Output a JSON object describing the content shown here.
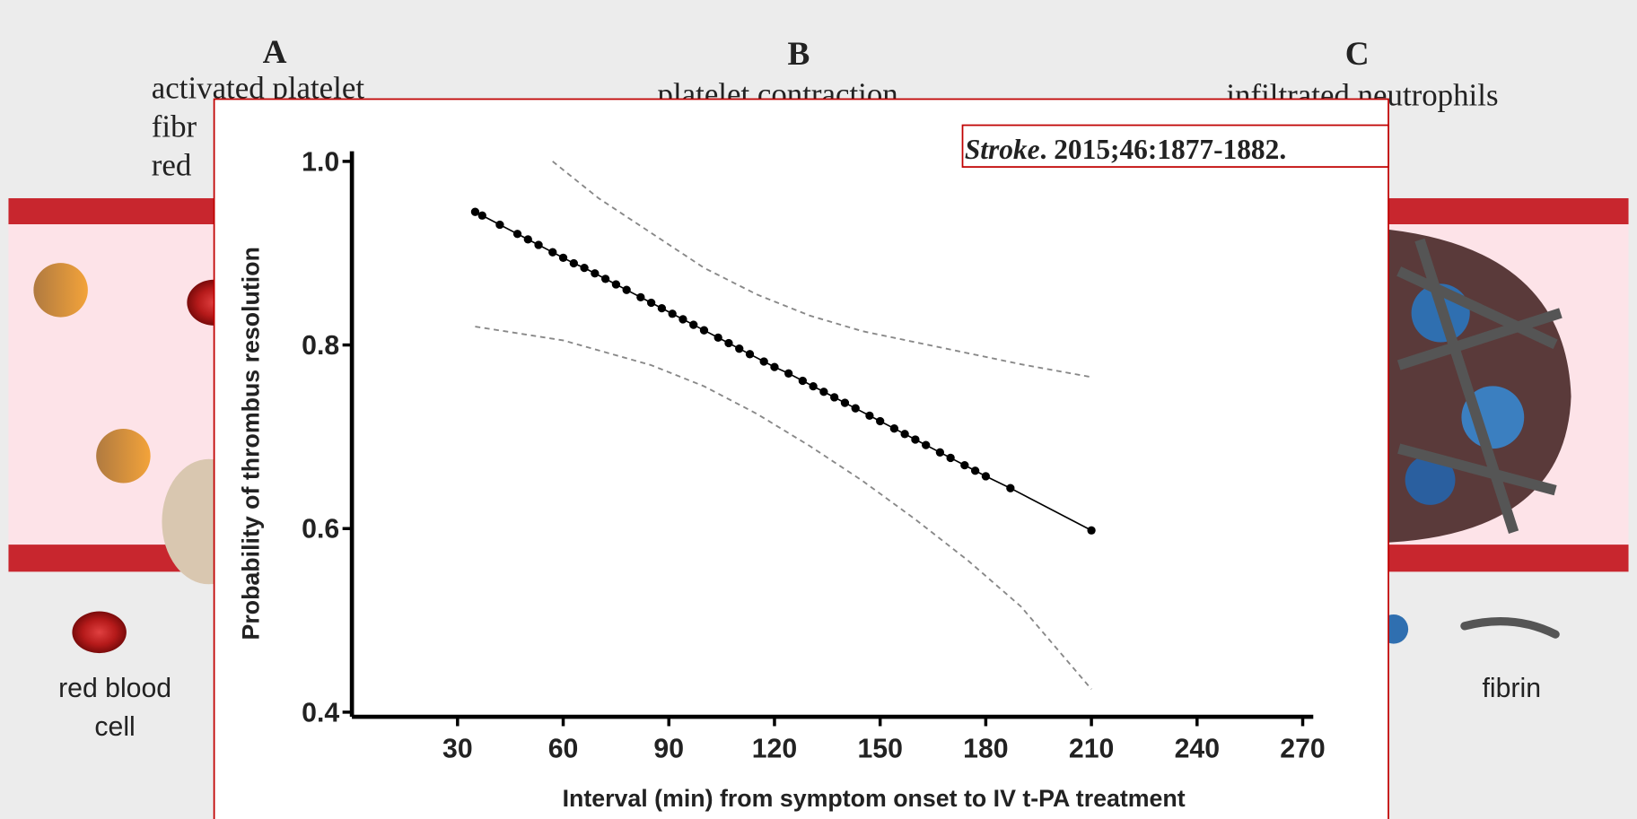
{
  "background": {
    "panels": [
      {
        "letter": "A",
        "lines": [
          "activated platelet",
          "fibr",
          "red"
        ]
      },
      {
        "letter": "B",
        "lines": [
          "platelet contraction"
        ]
      },
      {
        "letter": "C",
        "lines": [
          "infiltrated neutrophils"
        ]
      }
    ],
    "legend": {
      "red_blood_cell": [
        "red blood",
        "cell"
      ],
      "fibrin": "fibrin"
    }
  },
  "citation": {
    "journal": "Stroke",
    "reference": ". 2015;46:1877-1882."
  },
  "chart_data": {
    "type": "line",
    "x_label": "Interval (min) from symptom onset to IV t-PA treatment",
    "y_label": "Probability of thrombus resolution",
    "xlim": [
      0,
      273
    ],
    "xticks": [
      30,
      60,
      90,
      120,
      150,
      180,
      210,
      240,
      270
    ],
    "ylim": [
      0.395,
      1.011
    ],
    "yticks": [
      0.4,
      0.6,
      0.8,
      {
        "value": 1,
        "label": "1.0"
      }
    ],
    "series": [
      {
        "color": "#000000",
        "dashed": false,
        "markers": true,
        "x": [
          35,
          37,
          42,
          47,
          50,
          53,
          57,
          60,
          63,
          66,
          69,
          72,
          75,
          78,
          82,
          85,
          88,
          91,
          94,
          97,
          100,
          104,
          107,
          110,
          113,
          117,
          120,
          124,
          128,
          131,
          134,
          137,
          140,
          143,
          147,
          150,
          154,
          157,
          160,
          163,
          167,
          170,
          174,
          177,
          180,
          187,
          210
        ],
        "values": [
          0.945,
          0.941,
          0.931,
          0.921,
          0.915,
          0.909,
          0.901,
          0.895,
          0.889,
          0.884,
          0.878,
          0.872,
          0.866,
          0.86,
          0.852,
          0.846,
          0.84,
          0.834,
          0.828,
          0.822,
          0.816,
          0.808,
          0.802,
          0.796,
          0.79,
          0.782,
          0.776,
          0.769,
          0.761,
          0.755,
          0.749,
          0.743,
          0.737,
          0.731,
          0.723,
          0.717,
          0.709,
          0.703,
          0.697,
          0.691,
          0.683,
          0.677,
          0.669,
          0.663,
          0.657,
          0.644,
          0.598
        ]
      },
      {
        "color": "#888888",
        "dashed": true,
        "markers": false,
        "x": [
          57,
          70,
          85,
          100,
          115,
          130,
          145,
          160,
          175,
          190,
          210
        ],
        "values": [
          1.0,
          0.96,
          0.922,
          0.884,
          0.855,
          0.832,
          0.815,
          0.803,
          0.791,
          0.779,
          0.765
        ]
      },
      {
        "color": "#888888",
        "dashed": true,
        "markers": false,
        "x": [
          35,
          60,
          85,
          100,
          115,
          130,
          145,
          160,
          175,
          190,
          210
        ],
        "values": [
          0.82,
          0.805,
          0.778,
          0.755,
          0.725,
          0.69,
          0.652,
          0.61,
          0.565,
          0.515,
          0.425
        ]
      }
    ]
  }
}
